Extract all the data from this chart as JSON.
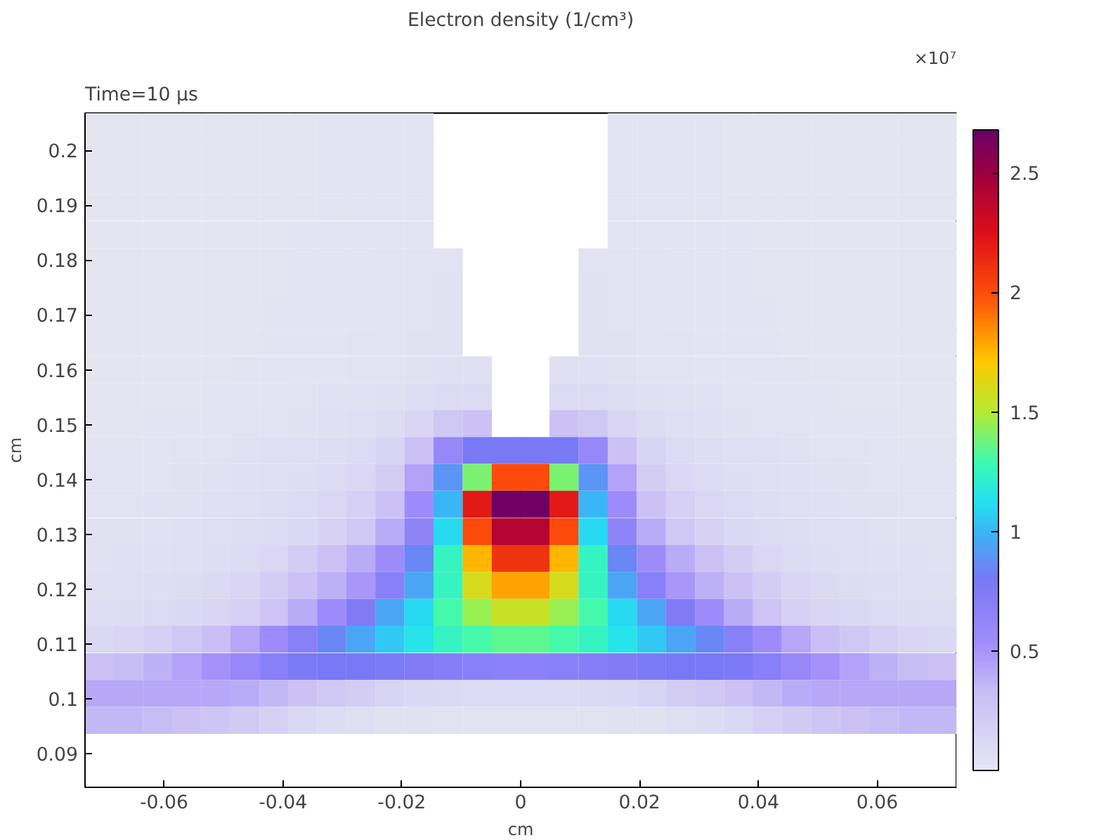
{
  "chart_data": {
    "type": "heatmap",
    "title": "Electron density (1/cm³)",
    "annotations": [
      "Time=10 µs"
    ],
    "xlabel": "cm",
    "ylabel": "cm",
    "clabel": "×10⁷",
    "xlim": [
      -0.0733,
      0.0733
    ],
    "ylim": [
      0.0839,
      0.2068
    ],
    "xticks": [
      -0.06,
      -0.04,
      -0.02,
      0,
      0.02,
      0.04,
      0.06
    ],
    "yticks": [
      0.09,
      0.1,
      0.11,
      0.12,
      0.13,
      0.14,
      0.15,
      0.16,
      0.17,
      0.18,
      0.19,
      0.2
    ],
    "clim": [
      0,
      2.68
    ],
    "cticks": [
      0.5,
      1,
      1.5,
      2,
      2.5
    ],
    "x": [
      -0.0709,
      -0.066,
      -0.0611,
      -0.0562,
      -0.0513,
      -0.0464,
      -0.0415,
      -0.0367,
      -0.0318,
      -0.0269,
      -0.022,
      -0.0171,
      -0.0122,
      -0.0073,
      -0.0024,
      0.0024,
      0.0073,
      0.0122,
      0.0171,
      0.022,
      0.0269,
      0.0318,
      0.0367,
      0.0415,
      0.0464,
      0.0513,
      0.0562,
      0.0611,
      0.066,
      0.0709
    ],
    "y": [
      0.2043,
      0.1994,
      0.1945,
      0.1896,
      0.1846,
      0.1797,
      0.1748,
      0.1699,
      0.165,
      0.16,
      0.1551,
      0.1502,
      0.1453,
      0.1404,
      0.1355,
      0.1305,
      0.1256,
      0.1207,
      0.1158,
      0.1109,
      0.1059,
      0.101,
      0.0961
    ],
    "cells": [
      [
        0.02,
        0.02,
        0.02,
        0.02,
        0.02,
        0.02,
        0.02,
        0.02,
        0.03,
        0.03,
        0.03,
        0.03,
        null,
        null,
        null,
        null,
        null,
        null,
        0.03,
        0.03,
        0.03,
        0.03,
        0.02,
        0.02,
        0.02,
        0.02,
        0.02,
        0.02,
        0.02,
        0.02
      ],
      [
        0.02,
        0.02,
        0.02,
        0.02,
        0.02,
        0.02,
        0.02,
        0.02,
        0.03,
        0.03,
        0.03,
        0.03,
        null,
        null,
        null,
        null,
        null,
        null,
        0.03,
        0.03,
        0.03,
        0.03,
        0.02,
        0.02,
        0.02,
        0.02,
        0.02,
        0.02,
        0.02,
        0.02
      ],
      [
        0.02,
        0.02,
        0.02,
        0.02,
        0.02,
        0.02,
        0.02,
        0.02,
        0.03,
        0.03,
        0.03,
        0.04,
        null,
        null,
        null,
        null,
        null,
        null,
        0.04,
        0.03,
        0.03,
        0.03,
        0.02,
        0.02,
        0.02,
        0.02,
        0.02,
        0.02,
        0.02,
        0.02
      ],
      [
        0.02,
        0.02,
        0.02,
        0.02,
        0.02,
        0.02,
        0.02,
        0.02,
        0.03,
        0.03,
        0.03,
        0.04,
        null,
        null,
        null,
        null,
        null,
        null,
        0.04,
        0.03,
        0.03,
        0.03,
        0.02,
        0.02,
        0.02,
        0.02,
        0.02,
        0.02,
        0.02,
        0.02
      ],
      [
        0.02,
        0.02,
        0.02,
        0.02,
        0.02,
        0.02,
        0.02,
        0.03,
        0.03,
        0.03,
        0.04,
        0.04,
        null,
        null,
        null,
        null,
        null,
        null,
        0.04,
        0.04,
        0.03,
        0.03,
        0.03,
        0.02,
        0.02,
        0.02,
        0.02,
        0.02,
        0.02,
        0.02
      ],
      [
        0.02,
        0.02,
        0.02,
        0.02,
        0.02,
        0.02,
        0.02,
        0.03,
        0.03,
        0.03,
        0.04,
        0.04,
        0.04,
        null,
        null,
        null,
        null,
        0.04,
        0.04,
        0.04,
        0.03,
        0.03,
        0.03,
        0.02,
        0.02,
        0.02,
        0.02,
        0.02,
        0.02,
        0.02
      ],
      [
        0.02,
        0.02,
        0.02,
        0.02,
        0.02,
        0.02,
        0.02,
        0.03,
        0.03,
        0.03,
        0.04,
        0.04,
        0.05,
        null,
        null,
        null,
        null,
        0.05,
        0.04,
        0.04,
        0.03,
        0.03,
        0.03,
        0.02,
        0.02,
        0.02,
        0.02,
        0.02,
        0.02,
        0.02
      ],
      [
        0.02,
        0.02,
        0.02,
        0.02,
        0.02,
        0.02,
        0.03,
        0.03,
        0.03,
        0.03,
        0.04,
        0.04,
        0.05,
        null,
        null,
        null,
        null,
        0.05,
        0.04,
        0.04,
        0.03,
        0.03,
        0.03,
        0.03,
        0.02,
        0.02,
        0.02,
        0.02,
        0.02,
        0.02
      ],
      [
        0.02,
        0.02,
        0.02,
        0.02,
        0.02,
        0.02,
        0.03,
        0.03,
        0.03,
        0.04,
        0.04,
        0.05,
        0.05,
        null,
        null,
        null,
        null,
        0.05,
        0.05,
        0.04,
        0.04,
        0.03,
        0.03,
        0.03,
        0.02,
        0.02,
        0.02,
        0.02,
        0.02,
        0.02
      ],
      [
        0.02,
        0.02,
        0.02,
        0.02,
        0.02,
        0.03,
        0.03,
        0.03,
        0.03,
        0.04,
        0.04,
        0.05,
        0.06,
        0.06,
        null,
        null,
        0.06,
        0.06,
        0.05,
        0.04,
        0.04,
        0.03,
        0.03,
        0.03,
        0.03,
        0.02,
        0.02,
        0.02,
        0.02,
        0.02
      ],
      [
        0.02,
        0.02,
        0.02,
        0.02,
        0.03,
        0.03,
        0.03,
        0.04,
        0.05,
        0.05,
        0.06,
        0.08,
        0.1,
        0.1,
        null,
        null,
        0.1,
        0.1,
        0.08,
        0.06,
        0.05,
        0.05,
        0.04,
        0.03,
        0.03,
        0.03,
        0.02,
        0.02,
        0.02,
        0.02
      ],
      [
        0.02,
        0.02,
        0.03,
        0.03,
        0.03,
        0.04,
        0.04,
        0.05,
        0.06,
        0.07,
        0.09,
        0.14,
        0.25,
        0.3,
        null,
        null,
        0.3,
        0.25,
        0.14,
        0.09,
        0.07,
        0.06,
        0.05,
        0.04,
        0.04,
        0.03,
        0.03,
        0.03,
        0.02,
        0.02
      ],
      [
        0.03,
        0.03,
        0.03,
        0.04,
        0.04,
        0.05,
        0.06,
        0.07,
        0.08,
        0.1,
        0.15,
        0.3,
        0.6,
        0.8,
        0.8,
        0.8,
        0.8,
        0.6,
        0.3,
        0.15,
        0.1,
        0.08,
        0.07,
        0.06,
        0.05,
        0.04,
        0.04,
        0.03,
        0.03,
        0.03
      ],
      [
        0.04,
        0.04,
        0.04,
        0.05,
        0.05,
        0.06,
        0.07,
        0.08,
        0.1,
        0.13,
        0.2,
        0.45,
        0.9,
        1.4,
        2.0,
        2.0,
        1.4,
        0.9,
        0.45,
        0.2,
        0.13,
        0.1,
        0.08,
        0.07,
        0.06,
        0.05,
        0.05,
        0.04,
        0.04,
        0.04
      ],
      [
        0.04,
        0.04,
        0.05,
        0.05,
        0.06,
        0.07,
        0.08,
        0.1,
        0.13,
        0.18,
        0.3,
        0.55,
        1.0,
        2.2,
        2.65,
        2.65,
        2.2,
        1.0,
        0.55,
        0.3,
        0.18,
        0.13,
        0.1,
        0.08,
        0.07,
        0.06,
        0.05,
        0.05,
        0.04,
        0.04
      ],
      [
        0.05,
        0.05,
        0.05,
        0.06,
        0.07,
        0.08,
        0.1,
        0.12,
        0.16,
        0.25,
        0.4,
        0.65,
        1.1,
        2.0,
        2.4,
        2.4,
        2.0,
        1.1,
        0.65,
        0.4,
        0.25,
        0.16,
        0.12,
        0.1,
        0.08,
        0.07,
        0.06,
        0.05,
        0.05,
        0.05
      ],
      [
        0.05,
        0.06,
        0.06,
        0.07,
        0.08,
        0.1,
        0.13,
        0.2,
        0.3,
        0.4,
        0.55,
        0.85,
        1.25,
        1.75,
        2.1,
        2.1,
        1.75,
        1.25,
        0.85,
        0.55,
        0.4,
        0.3,
        0.2,
        0.13,
        0.1,
        0.08,
        0.07,
        0.06,
        0.06,
        0.05
      ],
      [
        0.06,
        0.07,
        0.08,
        0.09,
        0.11,
        0.14,
        0.2,
        0.3,
        0.38,
        0.5,
        0.7,
        0.95,
        1.25,
        1.6,
        1.8,
        1.8,
        1.6,
        1.25,
        0.95,
        0.7,
        0.5,
        0.38,
        0.3,
        0.2,
        0.14,
        0.11,
        0.09,
        0.08,
        0.07,
        0.06
      ],
      [
        0.08,
        0.09,
        0.1,
        0.12,
        0.14,
        0.18,
        0.28,
        0.4,
        0.55,
        0.75,
        0.95,
        1.1,
        1.3,
        1.45,
        1.55,
        1.55,
        1.45,
        1.3,
        1.1,
        0.95,
        0.75,
        0.55,
        0.4,
        0.28,
        0.18,
        0.14,
        0.12,
        0.1,
        0.09,
        0.08
      ],
      [
        0.12,
        0.14,
        0.18,
        0.25,
        0.32,
        0.42,
        0.55,
        0.7,
        0.85,
        0.95,
        1.05,
        1.15,
        1.25,
        1.3,
        1.35,
        1.35,
        1.3,
        1.25,
        1.15,
        1.05,
        0.95,
        0.85,
        0.7,
        0.55,
        0.42,
        0.32,
        0.25,
        0.18,
        0.14,
        0.12
      ],
      [
        0.3,
        0.33,
        0.38,
        0.45,
        0.52,
        0.6,
        0.7,
        0.78,
        0.8,
        0.8,
        0.78,
        0.75,
        0.72,
        0.7,
        0.68,
        0.68,
        0.7,
        0.72,
        0.75,
        0.78,
        0.8,
        0.8,
        0.78,
        0.7,
        0.6,
        0.52,
        0.45,
        0.38,
        0.33,
        0.3
      ],
      [
        0.42,
        0.42,
        0.42,
        0.42,
        0.42,
        0.4,
        0.35,
        0.3,
        0.25,
        0.2,
        0.15,
        0.12,
        0.11,
        0.1,
        0.1,
        0.1,
        0.1,
        0.11,
        0.12,
        0.15,
        0.2,
        0.25,
        0.3,
        0.35,
        0.4,
        0.42,
        0.42,
        0.42,
        0.42,
        0.42
      ],
      [
        0.35,
        0.35,
        0.33,
        0.3,
        0.27,
        0.22,
        0.17,
        0.12,
        0.09,
        0.07,
        0.05,
        0.05,
        0.04,
        0.04,
        0.04,
        0.04,
        0.04,
        0.04,
        0.05,
        0.05,
        0.07,
        0.09,
        0.12,
        0.17,
        0.22,
        0.27,
        0.3,
        0.33,
        0.35,
        0.35
      ]
    ]
  }
}
